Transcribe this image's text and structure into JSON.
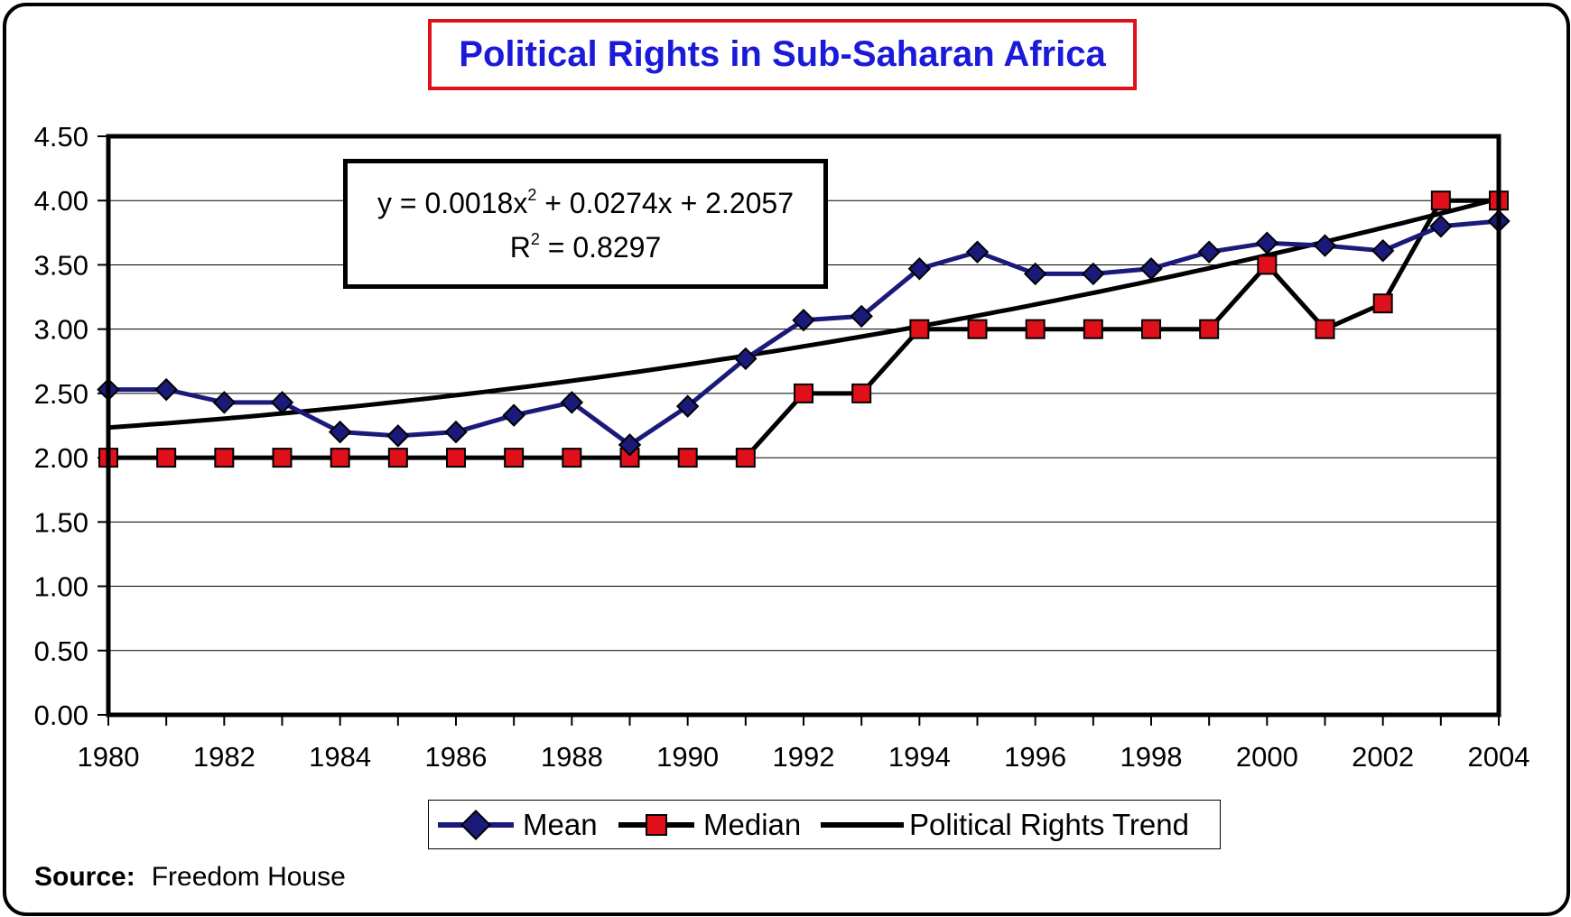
{
  "chart_data": {
    "type": "line",
    "title": "Political Rights in Sub-Saharan Africa",
    "xlabel": "",
    "ylabel": "",
    "x": [
      1980,
      1981,
      1982,
      1983,
      1984,
      1985,
      1986,
      1987,
      1988,
      1989,
      1990,
      1991,
      1992,
      1993,
      1994,
      1995,
      1996,
      1997,
      1998,
      1999,
      2000,
      2001,
      2002,
      2003,
      2004
    ],
    "xticks": [
      "1980",
      "1982",
      "1984",
      "1986",
      "1988",
      "1990",
      "1992",
      "1994",
      "1996",
      "1998",
      "2000",
      "2002",
      "2004"
    ],
    "yticks": [
      "0.00",
      "0.50",
      "1.00",
      "1.50",
      "2.00",
      "2.50",
      "3.00",
      "3.50",
      "4.00",
      "4.50"
    ],
    "ylim": [
      0,
      4.5
    ],
    "grid": true,
    "legend_position": "bottom",
    "series": [
      {
        "name": "Mean",
        "color": "#1a1a7a",
        "marker": "diamond",
        "values": [
          2.53,
          2.53,
          2.43,
          2.43,
          2.2,
          2.17,
          2.2,
          2.33,
          2.43,
          2.1,
          2.4,
          2.77,
          3.07,
          3.1,
          3.47,
          3.6,
          3.43,
          3.43,
          3.47,
          3.6,
          3.67,
          3.65,
          3.61,
          3.8,
          3.84
        ]
      },
      {
        "name": "Median",
        "color": "#000000",
        "marker": "square",
        "marker_color": "#e0101a",
        "values": [
          2,
          2,
          2,
          2,
          2,
          2,
          2,
          2,
          2,
          2,
          2,
          2,
          2.5,
          2.5,
          3,
          3,
          3,
          3,
          3,
          3,
          3.5,
          3,
          3.2,
          4,
          4
        ]
      },
      {
        "name": "Political Rights Trend",
        "color": "#000000",
        "marker": "none",
        "coefficients": {
          "a": 0.0018,
          "b": 0.0274,
          "c": 2.2057
        }
      }
    ],
    "annotation": {
      "equation": "y = 0.0018x",
      "equation_sup": "2",
      "equation_rest": " + 0.0274x + 2.2057",
      "r_label": "R",
      "r_sup": "2",
      "r_rest": " = 0.8297"
    }
  },
  "source": {
    "label": "Source:",
    "text": "Freedom House"
  }
}
